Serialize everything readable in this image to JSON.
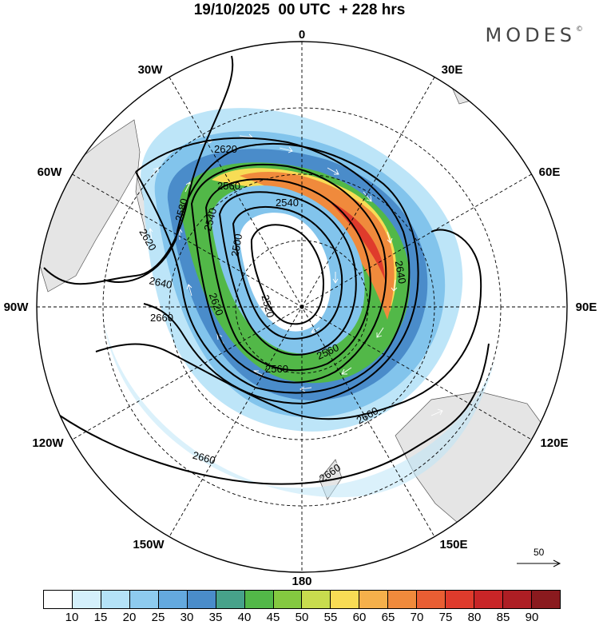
{
  "title": "19/10/2025  00 UTC  + 228 hrs",
  "brand": "MODES",
  "brand_mark": "©",
  "longitude_labels": {
    "top": "0",
    "e30": "30E",
    "e60": "60E",
    "e90": "90E",
    "e120": "120E",
    "e150": "150E",
    "bottom": "180",
    "w150": "150W",
    "w120": "120W",
    "w90": "90W",
    "w60": "60W",
    "w30": "30W"
  },
  "contour_labels": [
    "2620",
    "2560",
    "2540",
    "2580",
    "2540",
    "2500",
    "2620",
    "2640",
    "2620",
    "2660",
    "2520",
    "2640",
    "2560",
    "2560",
    "2660",
    "2660",
    "2660"
  ],
  "vector_reference": "50",
  "colorbar": {
    "labels": [
      "10",
      "15",
      "20",
      "25",
      "30",
      "35",
      "40",
      "45",
      "50",
      "55",
      "60",
      "65",
      "70",
      "75",
      "80",
      "85",
      "90"
    ],
    "colors": [
      "#ffffff",
      "#d4f0fb",
      "#b4e2f7",
      "#8ecbef",
      "#64a9df",
      "#4a8cca",
      "#47a28a",
      "#52b848",
      "#84c940",
      "#c8dc4e",
      "#f8dc55",
      "#f5b04b",
      "#f08a3c",
      "#e95e33",
      "#df3b2c",
      "#c82527",
      "#ad1e24",
      "#8a1a1e"
    ]
  },
  "map_colors": {
    "land": "#e5e5e5",
    "wind_light": "#bde5f8",
    "wind_mid": "#82c4ec",
    "wind_blue": "#4a8cca",
    "wind_green": "#52b848",
    "wind_yellow": "#f8dc55",
    "wind_orange": "#f08a3c",
    "wind_red": "#df3b2c"
  }
}
